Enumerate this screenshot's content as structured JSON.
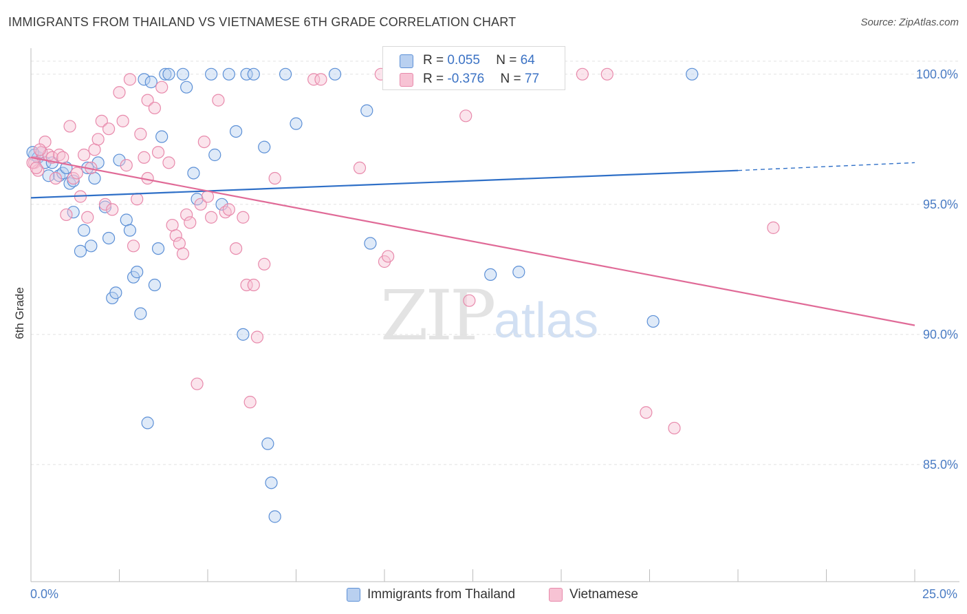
{
  "title": "IMMIGRANTS FROM THAILAND VS VIETNAMESE 6TH GRADE CORRELATION CHART",
  "source": "Source: ZipAtlas.com",
  "watermark": {
    "zip": "ZIP",
    "atlas": "atlas"
  },
  "colors": {
    "blue": "#5b8fd6",
    "blue_fill": "#b9d0f0",
    "blue_line": "#2e6fc7",
    "pink": "#e889ab",
    "pink_fill": "#f7c3d4",
    "pink_line": "#e06a97"
  },
  "legend": {
    "rows": [
      {
        "r_label": "R = ",
        "r_value": "0.055",
        "n_label": "N = ",
        "n_value": "64"
      },
      {
        "r_label": "R = ",
        "r_value": "-0.376",
        "n_label": "N = ",
        "n_value": "77"
      }
    ]
  },
  "bottom_legend": [
    "Immigrants from Thailand",
    "Vietnamese"
  ],
  "chart_data": {
    "type": "scatter",
    "xlabel": "",
    "ylabel": "6th Grade",
    "xlim": [
      0,
      25
    ],
    "ylim": [
      80.5,
      101.0
    ],
    "x_tick_labels": [
      "0.0%",
      "25.0%"
    ],
    "y_ticks": [
      85,
      90,
      95,
      100
    ],
    "y_tick_labels": [
      "85.0%",
      "90.0%",
      "95.0%",
      "100.0%"
    ],
    "grid": true,
    "legend_position": "top-center",
    "series": [
      {
        "name": "Immigrants from Thailand",
        "trend": {
          "x0": 0.0,
          "y0": 95.25,
          "x1": 20.0,
          "y1": 96.3,
          "dashed_to_x": 25.0,
          "dashed_to_y": 96.6
        },
        "points": [
          [
            0.1,
            96.9
          ],
          [
            0.2,
            96.8
          ],
          [
            0.3,
            97.0
          ],
          [
            0.4,
            96.6
          ],
          [
            0.5,
            96.1
          ],
          [
            0.6,
            96.6
          ],
          [
            0.8,
            96.1
          ],
          [
            0.9,
            96.2
          ],
          [
            1.0,
            96.4
          ],
          [
            1.1,
            95.8
          ],
          [
            1.2,
            95.9
          ],
          [
            1.2,
            94.7
          ],
          [
            1.4,
            93.2
          ],
          [
            1.5,
            94.0
          ],
          [
            1.6,
            96.4
          ],
          [
            1.7,
            93.4
          ],
          [
            1.8,
            96.0
          ],
          [
            1.9,
            96.6
          ],
          [
            2.1,
            94.9
          ],
          [
            2.2,
            93.7
          ],
          [
            2.3,
            91.4
          ],
          [
            2.4,
            91.6
          ],
          [
            2.5,
            96.7
          ],
          [
            2.7,
            94.4
          ],
          [
            2.8,
            94.0
          ],
          [
            2.9,
            92.2
          ],
          [
            3.0,
            92.4
          ],
          [
            3.1,
            90.8
          ],
          [
            3.2,
            99.8
          ],
          [
            3.3,
            86.6
          ],
          [
            3.4,
            99.7
          ],
          [
            3.5,
            91.9
          ],
          [
            3.6,
            93.3
          ],
          [
            3.7,
            97.6
          ],
          [
            3.8,
            100.0
          ],
          [
            3.9,
            100.0
          ],
          [
            4.3,
            100.0
          ],
          [
            4.4,
            99.5
          ],
          [
            4.6,
            96.2
          ],
          [
            4.7,
            95.2
          ],
          [
            5.1,
            100.0
          ],
          [
            5.2,
            96.9
          ],
          [
            5.4,
            95.0
          ],
          [
            5.6,
            100.0
          ],
          [
            5.8,
            97.8
          ],
          [
            6.0,
            90.0
          ],
          [
            6.1,
            100.0
          ],
          [
            6.3,
            100.0
          ],
          [
            6.6,
            97.2
          ],
          [
            6.7,
            85.8
          ],
          [
            6.8,
            84.3
          ],
          [
            6.9,
            83.0
          ],
          [
            7.2,
            100.0
          ],
          [
            7.5,
            98.1
          ],
          [
            8.6,
            100.0
          ],
          [
            9.5,
            98.6
          ],
          [
            9.6,
            93.5
          ],
          [
            12.2,
            100.0
          ],
          [
            13.0,
            92.3
          ],
          [
            13.4,
            100.0
          ],
          [
            13.8,
            92.4
          ],
          [
            17.6,
            90.5
          ],
          [
            18.7,
            100.0
          ],
          [
            0.05,
            97.0
          ]
        ]
      },
      {
        "name": "Vietnamese",
        "trend": {
          "x0": 0.0,
          "y0": 96.8,
          "x1": 25.0,
          "y1": 90.35
        },
        "points": [
          [
            0.1,
            96.6
          ],
          [
            0.2,
            96.3
          ],
          [
            0.3,
            97.0
          ],
          [
            0.4,
            97.4
          ],
          [
            0.5,
            96.9
          ],
          [
            0.6,
            96.8
          ],
          [
            0.7,
            96.0
          ],
          [
            0.8,
            96.9
          ],
          [
            0.9,
            96.8
          ],
          [
            1.0,
            94.6
          ],
          [
            1.1,
            98.0
          ],
          [
            1.2,
            96.0
          ],
          [
            1.3,
            96.2
          ],
          [
            1.4,
            95.3
          ],
          [
            1.5,
            96.9
          ],
          [
            1.6,
            94.5
          ],
          [
            1.7,
            96.4
          ],
          [
            1.8,
            97.1
          ],
          [
            1.9,
            97.5
          ],
          [
            2.0,
            98.2
          ],
          [
            2.1,
            95.0
          ],
          [
            2.2,
            97.9
          ],
          [
            2.3,
            94.8
          ],
          [
            2.5,
            99.3
          ],
          [
            2.6,
            98.2
          ],
          [
            2.7,
            96.5
          ],
          [
            2.8,
            99.8
          ],
          [
            2.9,
            93.4
          ],
          [
            3.0,
            95.2
          ],
          [
            3.1,
            97.7
          ],
          [
            3.2,
            96.8
          ],
          [
            3.3,
            96.0
          ],
          [
            3.3,
            99.0
          ],
          [
            3.5,
            98.7
          ],
          [
            3.6,
            97.0
          ],
          [
            3.7,
            99.5
          ],
          [
            3.9,
            96.6
          ],
          [
            4.0,
            94.2
          ],
          [
            4.1,
            93.8
          ],
          [
            4.2,
            93.5
          ],
          [
            4.3,
            93.1
          ],
          [
            4.4,
            94.6
          ],
          [
            4.5,
            94.3
          ],
          [
            4.7,
            88.1
          ],
          [
            4.8,
            95.0
          ],
          [
            4.9,
            97.4
          ],
          [
            5.0,
            95.3
          ],
          [
            5.1,
            94.5
          ],
          [
            5.3,
            99.0
          ],
          [
            5.5,
            94.7
          ],
          [
            5.6,
            94.8
          ],
          [
            5.8,
            93.3
          ],
          [
            6.0,
            94.5
          ],
          [
            6.1,
            91.9
          ],
          [
            6.2,
            87.4
          ],
          [
            6.3,
            91.9
          ],
          [
            6.4,
            89.9
          ],
          [
            6.6,
            92.7
          ],
          [
            6.9,
            96.0
          ],
          [
            8.0,
            99.8
          ],
          [
            8.2,
            99.8
          ],
          [
            9.3,
            96.4
          ],
          [
            9.9,
            100.0
          ],
          [
            10.0,
            92.8
          ],
          [
            10.1,
            93.0
          ],
          [
            12.0,
            100.0
          ],
          [
            12.3,
            98.4
          ],
          [
            12.4,
            91.3
          ],
          [
            15.6,
            100.0
          ],
          [
            16.3,
            100.0
          ],
          [
            17.4,
            87.0
          ],
          [
            18.2,
            86.4
          ],
          [
            21.0,
            94.1
          ],
          [
            0.05,
            96.6
          ],
          [
            0.15,
            96.4
          ],
          [
            0.25,
            97.1
          ],
          [
            10.5,
            100.0
          ]
        ]
      }
    ]
  }
}
